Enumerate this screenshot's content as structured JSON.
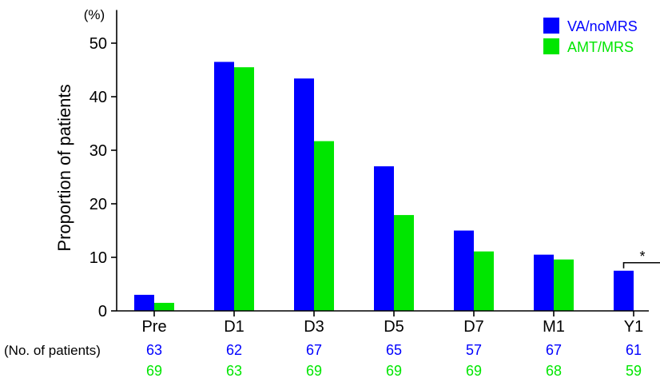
{
  "chart_data": {
    "type": "bar",
    "ylabel": "Proportion of patients",
    "yunit": "(%)",
    "ylim": [
      0,
      55
    ],
    "yticks": [
      0,
      10,
      20,
      30,
      40,
      50
    ],
    "categories": [
      "Pre",
      "D1",
      "D3",
      "D5",
      "D7",
      "M1",
      "Y1"
    ],
    "series": [
      {
        "name": "VA/noMRS",
        "color": "#0000ff",
        "values": [
          3.0,
          46.5,
          43.4,
          27.0,
          15.0,
          10.5,
          7.5
        ]
      },
      {
        "name": "AMT/MRS",
        "color": "#00e600",
        "values": [
          1.5,
          45.5,
          31.7,
          17.9,
          11.1,
          9.6,
          0
        ]
      }
    ],
    "legend_position": "top-right",
    "annotation": {
      "text": "*",
      "category": "Y1"
    },
    "counts": {
      "label": "(No. of patients)",
      "rows": [
        {
          "series": "VA/noMRS",
          "values": [
            "63",
            "62",
            "67",
            "65",
            "57",
            "67",
            "61"
          ]
        },
        {
          "series": "AMT/MRS",
          "values": [
            "69",
            "63",
            "69",
            "69",
            "69",
            "68",
            "59"
          ]
        }
      ]
    }
  }
}
